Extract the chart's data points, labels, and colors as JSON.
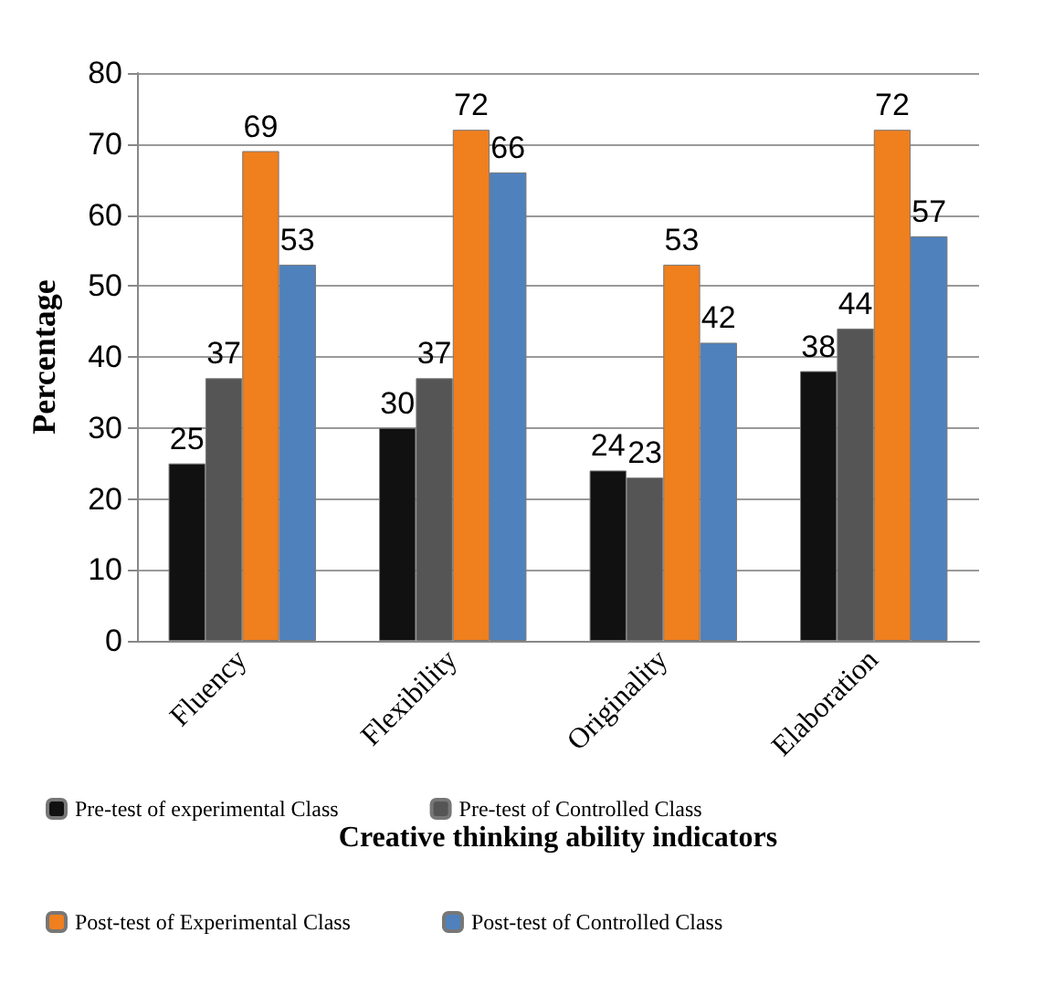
{
  "chart_data": {
    "type": "bar",
    "xlabel": "Creative thinking ability indicators",
    "ylabel": "Percentage",
    "categories": [
      "Fluency",
      "Flexibility",
      "Originality",
      "Elaboration"
    ],
    "series": [
      {
        "name": "Pre-test of experimental Class",
        "color": "#111111",
        "values": [
          25,
          30,
          24,
          38
        ]
      },
      {
        "name": "Pre-test of Controlled Class",
        "color": "#555555",
        "values": [
          37,
          37,
          23,
          44
        ]
      },
      {
        "name": "Post-test of Experimental Class",
        "color": "#f07f1e",
        "values": [
          69,
          72,
          53,
          72
        ]
      },
      {
        "name": "Post-test of Controlled Class",
        "color": "#4f81bd",
        "values": [
          53,
          66,
          42,
          57
        ]
      }
    ],
    "ylim": [
      0,
      80
    ],
    "yticks": [
      0,
      10,
      20,
      30,
      40,
      50,
      60,
      70,
      80
    ],
    "grid": "y",
    "legend": "bottom",
    "data_labels": true
  }
}
